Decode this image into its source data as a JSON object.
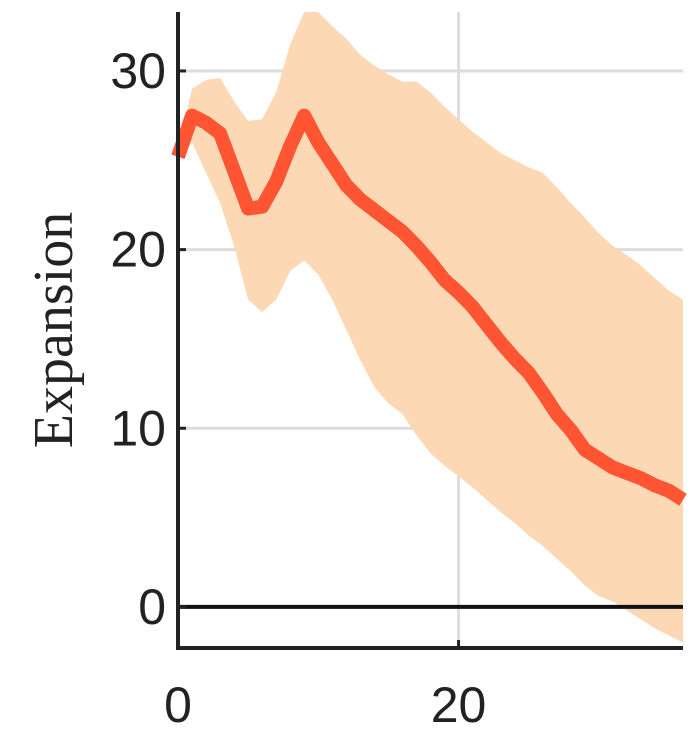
{
  "chart_data": {
    "type": "line",
    "ylabel": "Expansion",
    "xlim": [
      0,
      36
    ],
    "ylim": [
      -2.3,
      33.3
    ],
    "xticks": [
      0,
      20
    ],
    "yticks": [
      0,
      10,
      20,
      30
    ],
    "grid": true,
    "zero_line": true,
    "colors": {
      "line": "#ff5533",
      "band": "#fdd8b5",
      "grid": "#dddddd",
      "zero_line": "#111111",
      "axis": "#222222"
    },
    "series": [
      {
        "x": [
          0,
          1,
          2,
          3,
          4,
          5,
          6,
          7,
          8,
          9,
          10,
          11,
          12,
          13,
          14,
          15,
          16,
          17,
          18,
          19,
          20,
          21,
          22,
          23,
          24,
          25,
          26,
          27,
          28,
          29,
          30,
          31,
          32,
          33,
          34,
          35,
          36
        ],
        "values": [
          25.2,
          27.5,
          27.1,
          26.5,
          24.4,
          22.3,
          22.4,
          23.8,
          25.8,
          27.5,
          26.0,
          24.8,
          23.6,
          22.8,
          22.2,
          21.6,
          21.0,
          20.2,
          19.3,
          18.3,
          17.6,
          16.8,
          15.8,
          14.8,
          13.9,
          13.1,
          12.0,
          10.8,
          9.9,
          8.8,
          8.3,
          7.8,
          7.5,
          7.2,
          6.8,
          6.5,
          6.0
        ],
        "upper": [
          25.5,
          29.0,
          29.5,
          29.6,
          28.3,
          27.2,
          27.3,
          28.8,
          31.5,
          33.3,
          33.3,
          32.5,
          31.8,
          30.9,
          30.3,
          29.8,
          29.4,
          29.4,
          28.8,
          28.0,
          27.3,
          26.6,
          26.0,
          25.4,
          25.0,
          24.6,
          24.3,
          23.5,
          22.6,
          21.8,
          20.9,
          20.2,
          19.7,
          19.1,
          18.4,
          17.7,
          17.2
        ],
        "lower": [
          25.0,
          26.0,
          24.3,
          22.6,
          20.2,
          17.2,
          16.5,
          17.2,
          18.8,
          19.4,
          18.6,
          17.2,
          15.5,
          13.8,
          12.3,
          11.4,
          10.8,
          9.6,
          8.6,
          7.9,
          7.3,
          6.7,
          6.0,
          5.3,
          4.7,
          4.0,
          3.4,
          2.7,
          2.0,
          1.2,
          0.6,
          0.3,
          -0.2,
          -0.7,
          -1.2,
          -1.6,
          -2.0
        ]
      }
    ]
  }
}
